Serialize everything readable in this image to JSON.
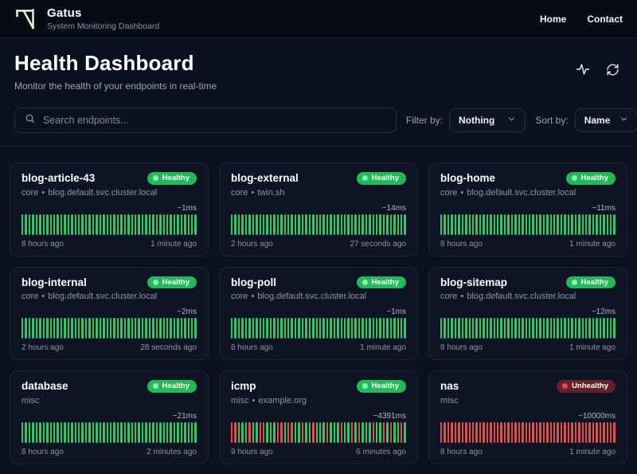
{
  "header": {
    "brand": "Gatus",
    "subtitle": "System Monitoring Dashboard",
    "nav": [
      {
        "label": "Home"
      },
      {
        "label": "Contact"
      }
    ]
  },
  "hero": {
    "title": "Health Dashboard",
    "subtitle": "Monitor the health of your endpoints in real-time",
    "icons": [
      "activity-pulse-icon",
      "refresh-icon"
    ]
  },
  "toolbar": {
    "search_placeholder": "Search endpoints...",
    "search_icon": "search-icon",
    "filter_label": "Filter by:",
    "filter_value": "Nothing",
    "sort_label": "Sort by:",
    "sort_value": "Name"
  },
  "colors": {
    "healthy_green": "#23b958",
    "bar_green": "#2cc966",
    "bar_red": "#df4f4e",
    "unhealthy_badge": "#64202c",
    "logo_accent": "#eef2cd",
    "page_bg": "#0b101e",
    "card_bg": "#0e1424"
  },
  "cards": [
    {
      "name": "blog-article-43",
      "group": "core",
      "sep": "•",
      "host": "blog.default.svc.cluster.local",
      "status": "Healthy",
      "latency": "~1ms",
      "start": "8 hours ago",
      "end": "1 minute ago",
      "bars": "gggggggggggggggggggggggggggggggggggggggggggggggggg"
    },
    {
      "name": "blog-external",
      "group": "core",
      "sep": "•",
      "host": "twin.sh",
      "status": "Healthy",
      "latency": "~14ms",
      "start": "2 hours ago",
      "end": "27 seconds ago",
      "bars": "gggggggggggggggggggggggggggggggggggggggggggggggggg"
    },
    {
      "name": "blog-home",
      "group": "core",
      "sep": "•",
      "host": "blog.default.svc.cluster.local",
      "status": "Healthy",
      "latency": "~11ms",
      "start": "8 hours ago",
      "end": "1 minute ago",
      "bars": "gggggggggggggggggggggggggggggggggggggggggggggggggg"
    },
    {
      "name": "blog-internal",
      "group": "core",
      "sep": "•",
      "host": "blog.default.svc.cluster.local",
      "status": "Healthy",
      "latency": "~2ms",
      "start": "2 hours ago",
      "end": "28 seconds ago",
      "bars": "gggggggggggggggggggggggggggggggggggggggggggggggggg"
    },
    {
      "name": "blog-poll",
      "group": "core",
      "sep": "•",
      "host": "blog.default.svc.cluster.local",
      "status": "Healthy",
      "latency": "~1ms",
      "start": "8 hours ago",
      "end": "1 minute ago",
      "bars": "gggggggggggggggggggggggggggggggggggggggggggggggggg"
    },
    {
      "name": "blog-sitemap",
      "group": "core",
      "sep": "•",
      "host": "blog.default.svc.cluster.local",
      "status": "Healthy",
      "latency": "~12ms",
      "start": "8 hours ago",
      "end": "1 minute ago",
      "bars": "gggggggggggggggggggggggggggggggggggggggggggggggggg"
    },
    {
      "name": "database",
      "group": "misc",
      "sep": "",
      "host": "",
      "status": "Healthy",
      "latency": "~21ms",
      "start": "8 hours ago",
      "end": "2 minutes ago",
      "bars": "gggggggggggggggggggggggggggggggggggggggggggggggggg"
    },
    {
      "name": "icmp",
      "group": "misc",
      "sep": "•",
      "host": "example.org",
      "status": "Healthy",
      "latency": "~4391ms",
      "start": "9 hours ago",
      "end": "6 minutes ago",
      "bars": "rrgggrggrrgggrrgrrggrggrgggrgggrggrgrgggrggrgrggrg"
    },
    {
      "name": "nas",
      "group": "misc",
      "sep": "",
      "host": "",
      "status": "Unhealthy",
      "latency": "~10000ms",
      "start": "8 hours ago",
      "end": "1 minute ago",
      "bars": "rrrrrrrrrrrrrrrrrrrrrrrrrrrrrrrrrrrrrrrrrrrrrrrrrr"
    }
  ]
}
